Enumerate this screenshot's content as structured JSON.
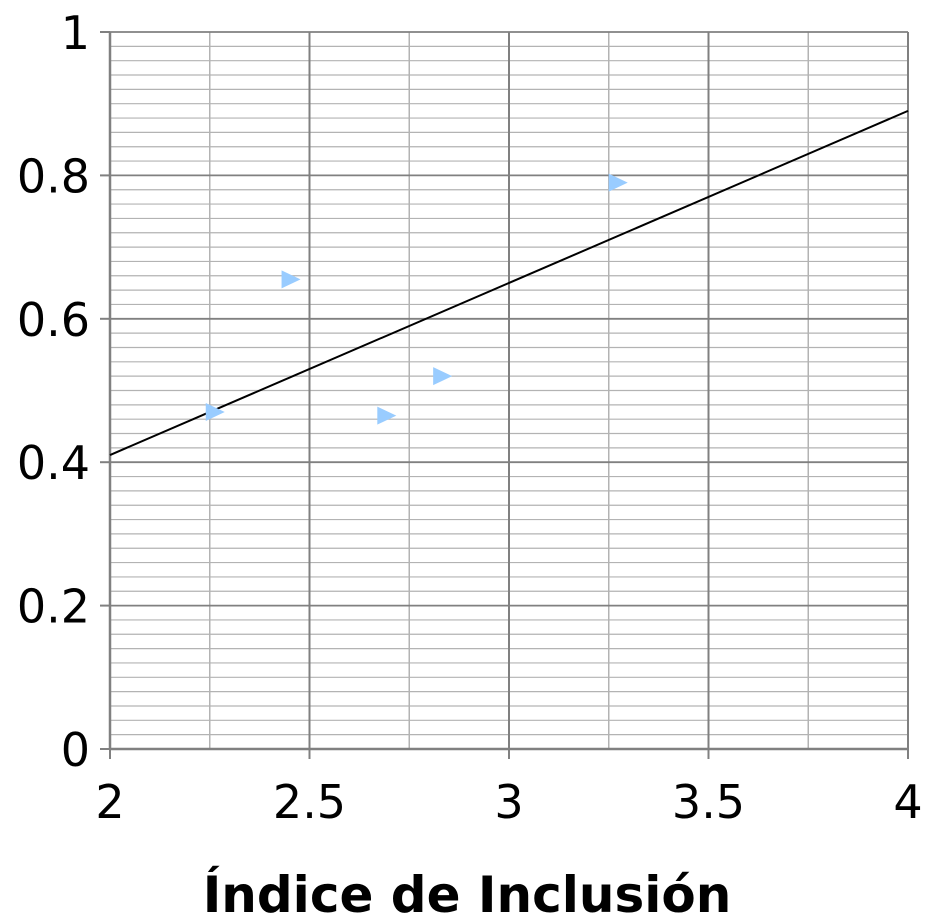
{
  "chart_data": {
    "type": "scatter",
    "title": "",
    "xlabel": "Índice de Inclusión",
    "ylabel": "",
    "xlim": [
      2,
      4
    ],
    "ylim": [
      0,
      1
    ],
    "x_ticks": [
      2,
      2.5,
      3,
      3.5,
      4
    ],
    "x_tick_labels": [
      "2",
      "2.5",
      "3",
      "3.5",
      "4"
    ],
    "y_ticks": [
      0,
      0.2,
      0.4,
      0.6,
      0.8,
      1
    ],
    "y_tick_labels": [
      "0",
      "0.2",
      "0.4",
      "0.6",
      "0.8",
      "1"
    ],
    "x_minor_step": 0.25,
    "y_minor_step": 0.02,
    "grid": true,
    "legend": "none",
    "marker": "triangle-right",
    "colors": {
      "points": "#99ccff",
      "trendline": "#000000",
      "major_grid": "#808080",
      "minor_grid": "#b3b3b3",
      "axis": "#808080"
    },
    "series": [
      {
        "points": [
          {
            "x": 2.26,
            "y": 0.47
          },
          {
            "x": 2.45,
            "y": 0.655
          },
          {
            "x": 2.69,
            "y": 0.465
          },
          {
            "x": 2.83,
            "y": 0.52
          },
          {
            "x": 3.27,
            "y": 0.79
          }
        ]
      }
    ],
    "trendline": {
      "type": "linear",
      "points": [
        {
          "x": 2,
          "y": 0.41
        },
        {
          "x": 4,
          "y": 0.89
        }
      ]
    }
  }
}
